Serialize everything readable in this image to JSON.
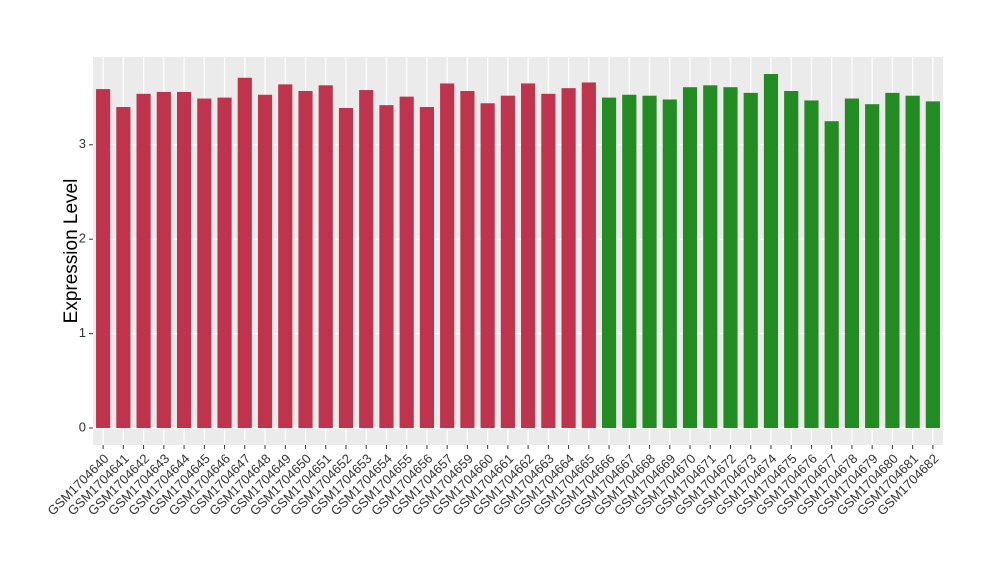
{
  "chart_data": {
    "type": "bar",
    "y_label": "Expression Level",
    "categories": [
      "GSM1704640",
      "GSM1704641",
      "GSM1704642",
      "GSM1704643",
      "GSM1704644",
      "GSM1704645",
      "GSM1704646",
      "GSM1704647",
      "GSM1704648",
      "GSM1704649",
      "GSM1704650",
      "GSM1704651",
      "GSM1704652",
      "GSM1704653",
      "GSM1704654",
      "GSM1704655",
      "GSM1704656",
      "GSM1704657",
      "GSM1704659",
      "GSM1704660",
      "GSM1704661",
      "GSM1704662",
      "GSM1704663",
      "GSM1704664",
      "GSM1704665",
      "GSM1704666",
      "GSM1704667",
      "GSM1704668",
      "GSM1704669",
      "GSM1704670",
      "GSM1704671",
      "GSM1704672",
      "GSM1704673",
      "GSM1704674",
      "GSM1704675",
      "GSM1704676",
      "GSM1704677",
      "GSM1704678",
      "GSM1704679",
      "GSM1704680",
      "GSM1704681",
      "GSM1704682"
    ],
    "values": [
      3.59,
      3.4,
      3.54,
      3.56,
      3.56,
      3.49,
      3.5,
      3.71,
      3.53,
      3.64,
      3.57,
      3.63,
      3.39,
      3.58,
      3.42,
      3.51,
      3.4,
      3.65,
      3.57,
      3.44,
      3.52,
      3.65,
      3.54,
      3.6,
      3.66,
      3.5,
      3.53,
      3.52,
      3.48,
      3.61,
      3.63,
      3.61,
      3.55,
      3.75,
      3.57,
      3.47,
      3.25,
      3.49,
      3.43,
      3.55,
      3.52,
      3.46
    ],
    "colors": [
      "#c0334d",
      "#c0334d",
      "#c0334d",
      "#c0334d",
      "#c0334d",
      "#c0334d",
      "#c0334d",
      "#c0334d",
      "#c0334d",
      "#c0334d",
      "#c0334d",
      "#c0334d",
      "#c0334d",
      "#c0334d",
      "#c0334d",
      "#c0334d",
      "#c0334d",
      "#c0334d",
      "#c0334d",
      "#c0334d",
      "#c0334d",
      "#c0334d",
      "#c0334d",
      "#c0334d",
      "#c0334d",
      "#228b22",
      "#228b22",
      "#228b22",
      "#228b22",
      "#228b22",
      "#228b22",
      "#228b22",
      "#228b22",
      "#228b22",
      "#228b22",
      "#228b22",
      "#228b22",
      "#228b22",
      "#228b22",
      "#228b22",
      "#228b22",
      "#228b22"
    ],
    "ylim": [
      -0.18,
      3.93
    ],
    "yticks": [
      0,
      1,
      2,
      3
    ],
    "grid": true
  }
}
